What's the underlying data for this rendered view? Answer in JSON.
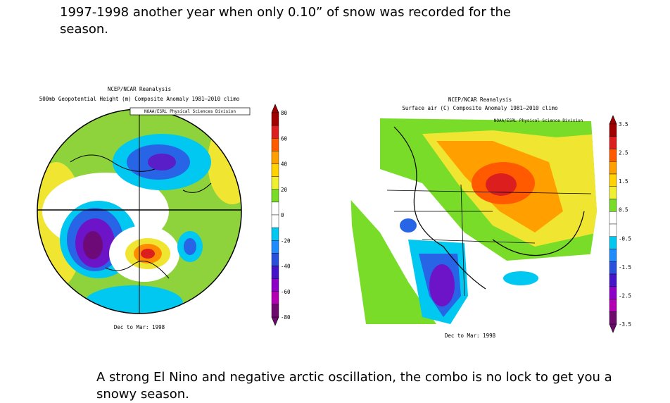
{
  "heading": "1997-1998 another year when only 0.10” of snow was recorded for the season.",
  "left_map": {
    "title_lines": [
      "NCEP/NCAR Reanalysis",
      "500mb Geopotential Height (m) Composite Anomaly 1981–2010 climo"
    ],
    "credit": "NOAA/ESRL Physical Sciences Division",
    "caption": "Dec to Mar: 1998",
    "colorbar_labels": [
      "80",
      "60",
      "40",
      "20",
      "0",
      "-20",
      "-40",
      "-60",
      "-80"
    ]
  },
  "right_map": {
    "title_lines": [
      "NCEP/NCAR Reanalysis",
      "Surface air (C) Composite Anomaly 1981–2010 climo"
    ],
    "credit": "NOAA/ESRL Physical Science Division",
    "caption": "Dec to Mar: 1998",
    "colorbar_labels": [
      "3.5",
      "2.5",
      "1.5",
      "0.5",
      "-0.5",
      "-1.5",
      "-2.5",
      "-3.5"
    ]
  },
  "footer": "A strong El Nino and negative arctic oscillation, the combo is no lock to get you a snowy season."
}
